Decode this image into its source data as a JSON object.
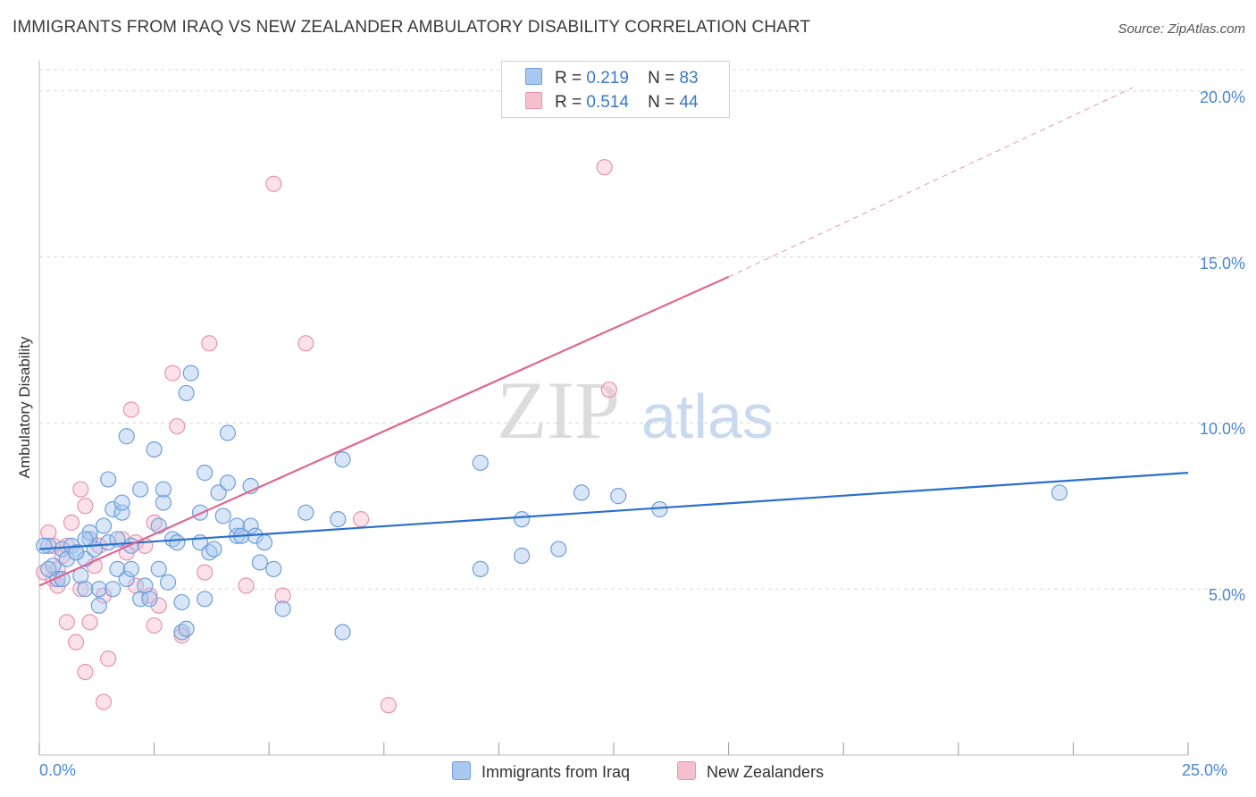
{
  "title": "IMMIGRANTS FROM IRAQ VS NEW ZEALANDER AMBULATORY DISABILITY CORRELATION CHART",
  "source": "Source: ZipAtlas.com",
  "watermark": {
    "zip": "ZIP",
    "atlas": "atlas"
  },
  "legend": {
    "rows": [
      {
        "r_label": "R =",
        "r_value": "0.219",
        "n_label": "N =",
        "n_value": "83"
      },
      {
        "r_label": "R =",
        "r_value": "0.514",
        "n_label": "N =",
        "n_value": "44"
      }
    ]
  },
  "colors": {
    "blue_fill": "#a9c8ef",
    "blue_stroke": "#6f9fd9",
    "blue_line": "#2a6fcc",
    "pink_fill": "#f6bfd0",
    "pink_stroke": "#e793ae",
    "pink_line": "#e0668f",
    "tick_text": "#4a86d0",
    "grid": "#d8d8d8"
  },
  "chart_data": {
    "type": "scatter",
    "title": "IMMIGRANTS FROM IRAQ VS NEW ZEALANDER AMBULATORY DISABILITY CORRELATION CHART",
    "xlabel": "",
    "ylabel": "Ambulatory Disability",
    "xlim": [
      0,
      25
    ],
    "ylim": [
      0,
      20.8
    ],
    "x_tick_labels": [
      "0.0%",
      "25.0%"
    ],
    "y_ticks": [
      5,
      10,
      15,
      20
    ],
    "y_tick_labels": [
      "5.0%",
      "10.0%",
      "15.0%",
      "20.0%"
    ],
    "grid": true,
    "legend_position": "top-center",
    "series": [
      {
        "name": "Immigrants from Iraq",
        "color": "#6f9fd9",
        "trend": {
          "x": [
            0,
            25
          ],
          "y": [
            6.2,
            8.5
          ]
        },
        "points": [
          [
            0.2,
            6.3
          ],
          [
            0.3,
            5.7
          ],
          [
            0.4,
            5.3
          ],
          [
            0.5,
            6.2
          ],
          [
            0.6,
            5.9
          ],
          [
            0.7,
            6.3
          ],
          [
            0.8,
            6.1
          ],
          [
            0.9,
            5.4
          ],
          [
            1.0,
            5.9
          ],
          [
            1.0,
            5.0
          ],
          [
            1.1,
            6.5
          ],
          [
            1.1,
            6.7
          ],
          [
            1.2,
            6.2
          ],
          [
            1.3,
            4.5
          ],
          [
            1.3,
            5.0
          ],
          [
            1.4,
            6.9
          ],
          [
            1.5,
            6.4
          ],
          [
            1.5,
            8.3
          ],
          [
            1.6,
            5.0
          ],
          [
            1.6,
            7.4
          ],
          [
            1.7,
            6.5
          ],
          [
            1.7,
            5.6
          ],
          [
            1.8,
            7.3
          ],
          [
            1.8,
            7.6
          ],
          [
            1.9,
            5.3
          ],
          [
            1.9,
            9.6
          ],
          [
            2.0,
            6.3
          ],
          [
            2.0,
            5.6
          ],
          [
            2.2,
            4.7
          ],
          [
            2.2,
            8.0
          ],
          [
            2.3,
            5.1
          ],
          [
            2.4,
            4.7
          ],
          [
            2.5,
            9.2
          ],
          [
            2.6,
            6.9
          ],
          [
            2.6,
            5.6
          ],
          [
            2.7,
            7.6
          ],
          [
            2.7,
            8.0
          ],
          [
            2.8,
            5.2
          ],
          [
            2.9,
            6.5
          ],
          [
            3.0,
            6.4
          ],
          [
            3.1,
            4.6
          ],
          [
            3.1,
            3.7
          ],
          [
            3.2,
            3.8
          ],
          [
            3.2,
            10.9
          ],
          [
            3.3,
            11.5
          ],
          [
            3.5,
            6.4
          ],
          [
            3.5,
            7.3
          ],
          [
            3.6,
            4.7
          ],
          [
            3.6,
            8.5
          ],
          [
            3.7,
            6.1
          ],
          [
            3.8,
            6.2
          ],
          [
            3.9,
            7.9
          ],
          [
            4.0,
            7.2
          ],
          [
            4.1,
            8.2
          ],
          [
            4.1,
            9.7
          ],
          [
            4.3,
            6.6
          ],
          [
            4.3,
            6.9
          ],
          [
            4.4,
            6.6
          ],
          [
            4.6,
            6.9
          ],
          [
            4.6,
            8.1
          ],
          [
            4.7,
            6.6
          ],
          [
            4.8,
            5.8
          ],
          [
            4.9,
            6.4
          ],
          [
            5.1,
            5.6
          ],
          [
            5.3,
            4.4
          ],
          [
            5.8,
            7.3
          ],
          [
            6.5,
            7.1
          ],
          [
            6.6,
            8.9
          ],
          [
            6.6,
            3.7
          ],
          [
            9.6,
            8.8
          ],
          [
            9.6,
            5.6
          ],
          [
            10.5,
            6.0
          ],
          [
            10.5,
            7.1
          ],
          [
            11.3,
            6.2
          ],
          [
            11.8,
            7.9
          ],
          [
            12.6,
            7.8
          ],
          [
            13.5,
            7.4
          ],
          [
            22.2,
            7.9
          ],
          [
            0.1,
            6.3
          ],
          [
            0.2,
            5.6
          ],
          [
            0.5,
            5.3
          ],
          [
            0.8,
            6.1
          ],
          [
            1.0,
            6.5
          ]
        ]
      },
      {
        "name": "New Zealanders",
        "color": "#e793ae",
        "trend": {
          "x": [
            0,
            15
          ],
          "y": [
            5.1,
            14.4
          ]
        },
        "trend_dashed": {
          "x": [
            15,
            23.8
          ],
          "y": [
            14.4,
            20.1
          ]
        },
        "points": [
          [
            0.2,
            6.7
          ],
          [
            0.3,
            6.3
          ],
          [
            0.3,
            5.3
          ],
          [
            0.4,
            5.1
          ],
          [
            0.4,
            5.6
          ],
          [
            0.5,
            6.0
          ],
          [
            0.6,
            4.0
          ],
          [
            0.6,
            6.3
          ],
          [
            0.7,
            7.0
          ],
          [
            0.8,
            3.4
          ],
          [
            0.9,
            8.0
          ],
          [
            1.0,
            2.5
          ],
          [
            1.0,
            7.5
          ],
          [
            1.1,
            4.0
          ],
          [
            1.2,
            5.7
          ],
          [
            1.3,
            6.3
          ],
          [
            1.4,
            1.6
          ],
          [
            1.4,
            4.8
          ],
          [
            1.5,
            2.9
          ],
          [
            1.8,
            6.5
          ],
          [
            1.9,
            6.1
          ],
          [
            2.0,
            10.4
          ],
          [
            2.1,
            6.4
          ],
          [
            2.1,
            5.1
          ],
          [
            2.4,
            4.8
          ],
          [
            2.5,
            3.9
          ],
          [
            2.5,
            7.0
          ],
          [
            2.6,
            4.5
          ],
          [
            2.9,
            11.5
          ],
          [
            3.0,
            9.9
          ],
          [
            3.1,
            3.6
          ],
          [
            3.6,
            5.5
          ],
          [
            3.7,
            12.4
          ],
          [
            4.5,
            5.1
          ],
          [
            5.1,
            17.2
          ],
          [
            5.3,
            4.8
          ],
          [
            5.8,
            12.4
          ],
          [
            7.0,
            7.1
          ],
          [
            7.6,
            1.5
          ],
          [
            12.3,
            17.7
          ],
          [
            12.4,
            11.0
          ],
          [
            0.1,
            5.5
          ],
          [
            0.9,
            5.0
          ],
          [
            2.3,
            6.3
          ]
        ]
      }
    ]
  }
}
